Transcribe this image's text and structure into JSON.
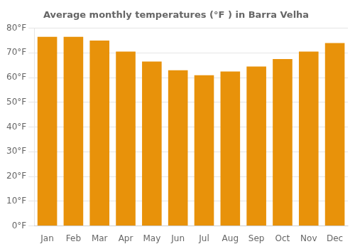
{
  "chart_data": {
    "type": "bar",
    "title": "Average monthly temperatures (°F ) in Barra Velha",
    "categories": [
      "Jan",
      "Feb",
      "Mar",
      "Apr",
      "May",
      "Jun",
      "Jul",
      "Aug",
      "Sep",
      "Oct",
      "Nov",
      "Dec"
    ],
    "values": [
      76.5,
      76.5,
      75.0,
      70.5,
      66.5,
      63.0,
      61.0,
      62.5,
      64.5,
      67.5,
      70.5,
      74.0
    ],
    "color": "#E8920A",
    "ylim": [
      0,
      80
    ],
    "yticks": [
      {
        "value": 0,
        "label": "0°F"
      },
      {
        "value": 10,
        "label": "10°F"
      },
      {
        "value": 20,
        "label": "20°F"
      },
      {
        "value": 30,
        "label": "30°F"
      },
      {
        "value": 40,
        "label": "40°F"
      },
      {
        "value": 50,
        "label": "50°F"
      },
      {
        "value": 60,
        "label": "60°F"
      },
      {
        "value": 70,
        "label": "70°F"
      },
      {
        "value": 80,
        "label": "80°F"
      }
    ],
    "grid": true
  }
}
